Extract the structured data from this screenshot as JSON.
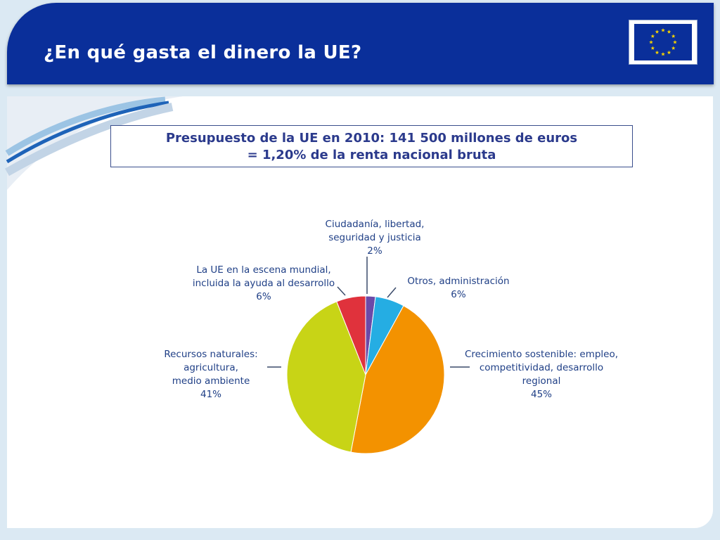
{
  "header": {
    "title": "¿En qué gasta el dinero la UE?",
    "flag_icon": "eu-flag-icon",
    "brand_color": "#0a2f9a",
    "star_color": "#f4d200"
  },
  "budget_box": {
    "line1": "Presupuesto de la UE en 2010: 141 500 millones de euros",
    "line2": "= 1,20% de la renta nacional bruta"
  },
  "chart_data": {
    "type": "pie",
    "title": "",
    "slices": [
      {
        "lines": [
          "Ciudadanía, libertad,",
          "seguridad y justicia"
        ],
        "value": 2,
        "pct_label": "2%",
        "color": "#6b4aa8"
      },
      {
        "lines": [
          "Otros, administración"
        ],
        "value": 6,
        "pct_label": "6%",
        "color": "#25ade3"
      },
      {
        "lines": [
          "Crecimiento sostenible: empleo,",
          "competitividad, desarrollo",
          "regional"
        ],
        "value": 45,
        "pct_label": "45%",
        "color": "#f39200"
      },
      {
        "lines": [
          "Recursos naturales:",
          "agricultura,",
          "medio ambiente"
        ],
        "value": 41,
        "pct_label": "41%",
        "color": "#c8d416"
      },
      {
        "lines": [
          "La UE en la escena mundial,",
          "incluida la ayuda al desarrollo"
        ],
        "value": 6,
        "pct_label": "6%",
        "color": "#e0323c"
      }
    ]
  }
}
